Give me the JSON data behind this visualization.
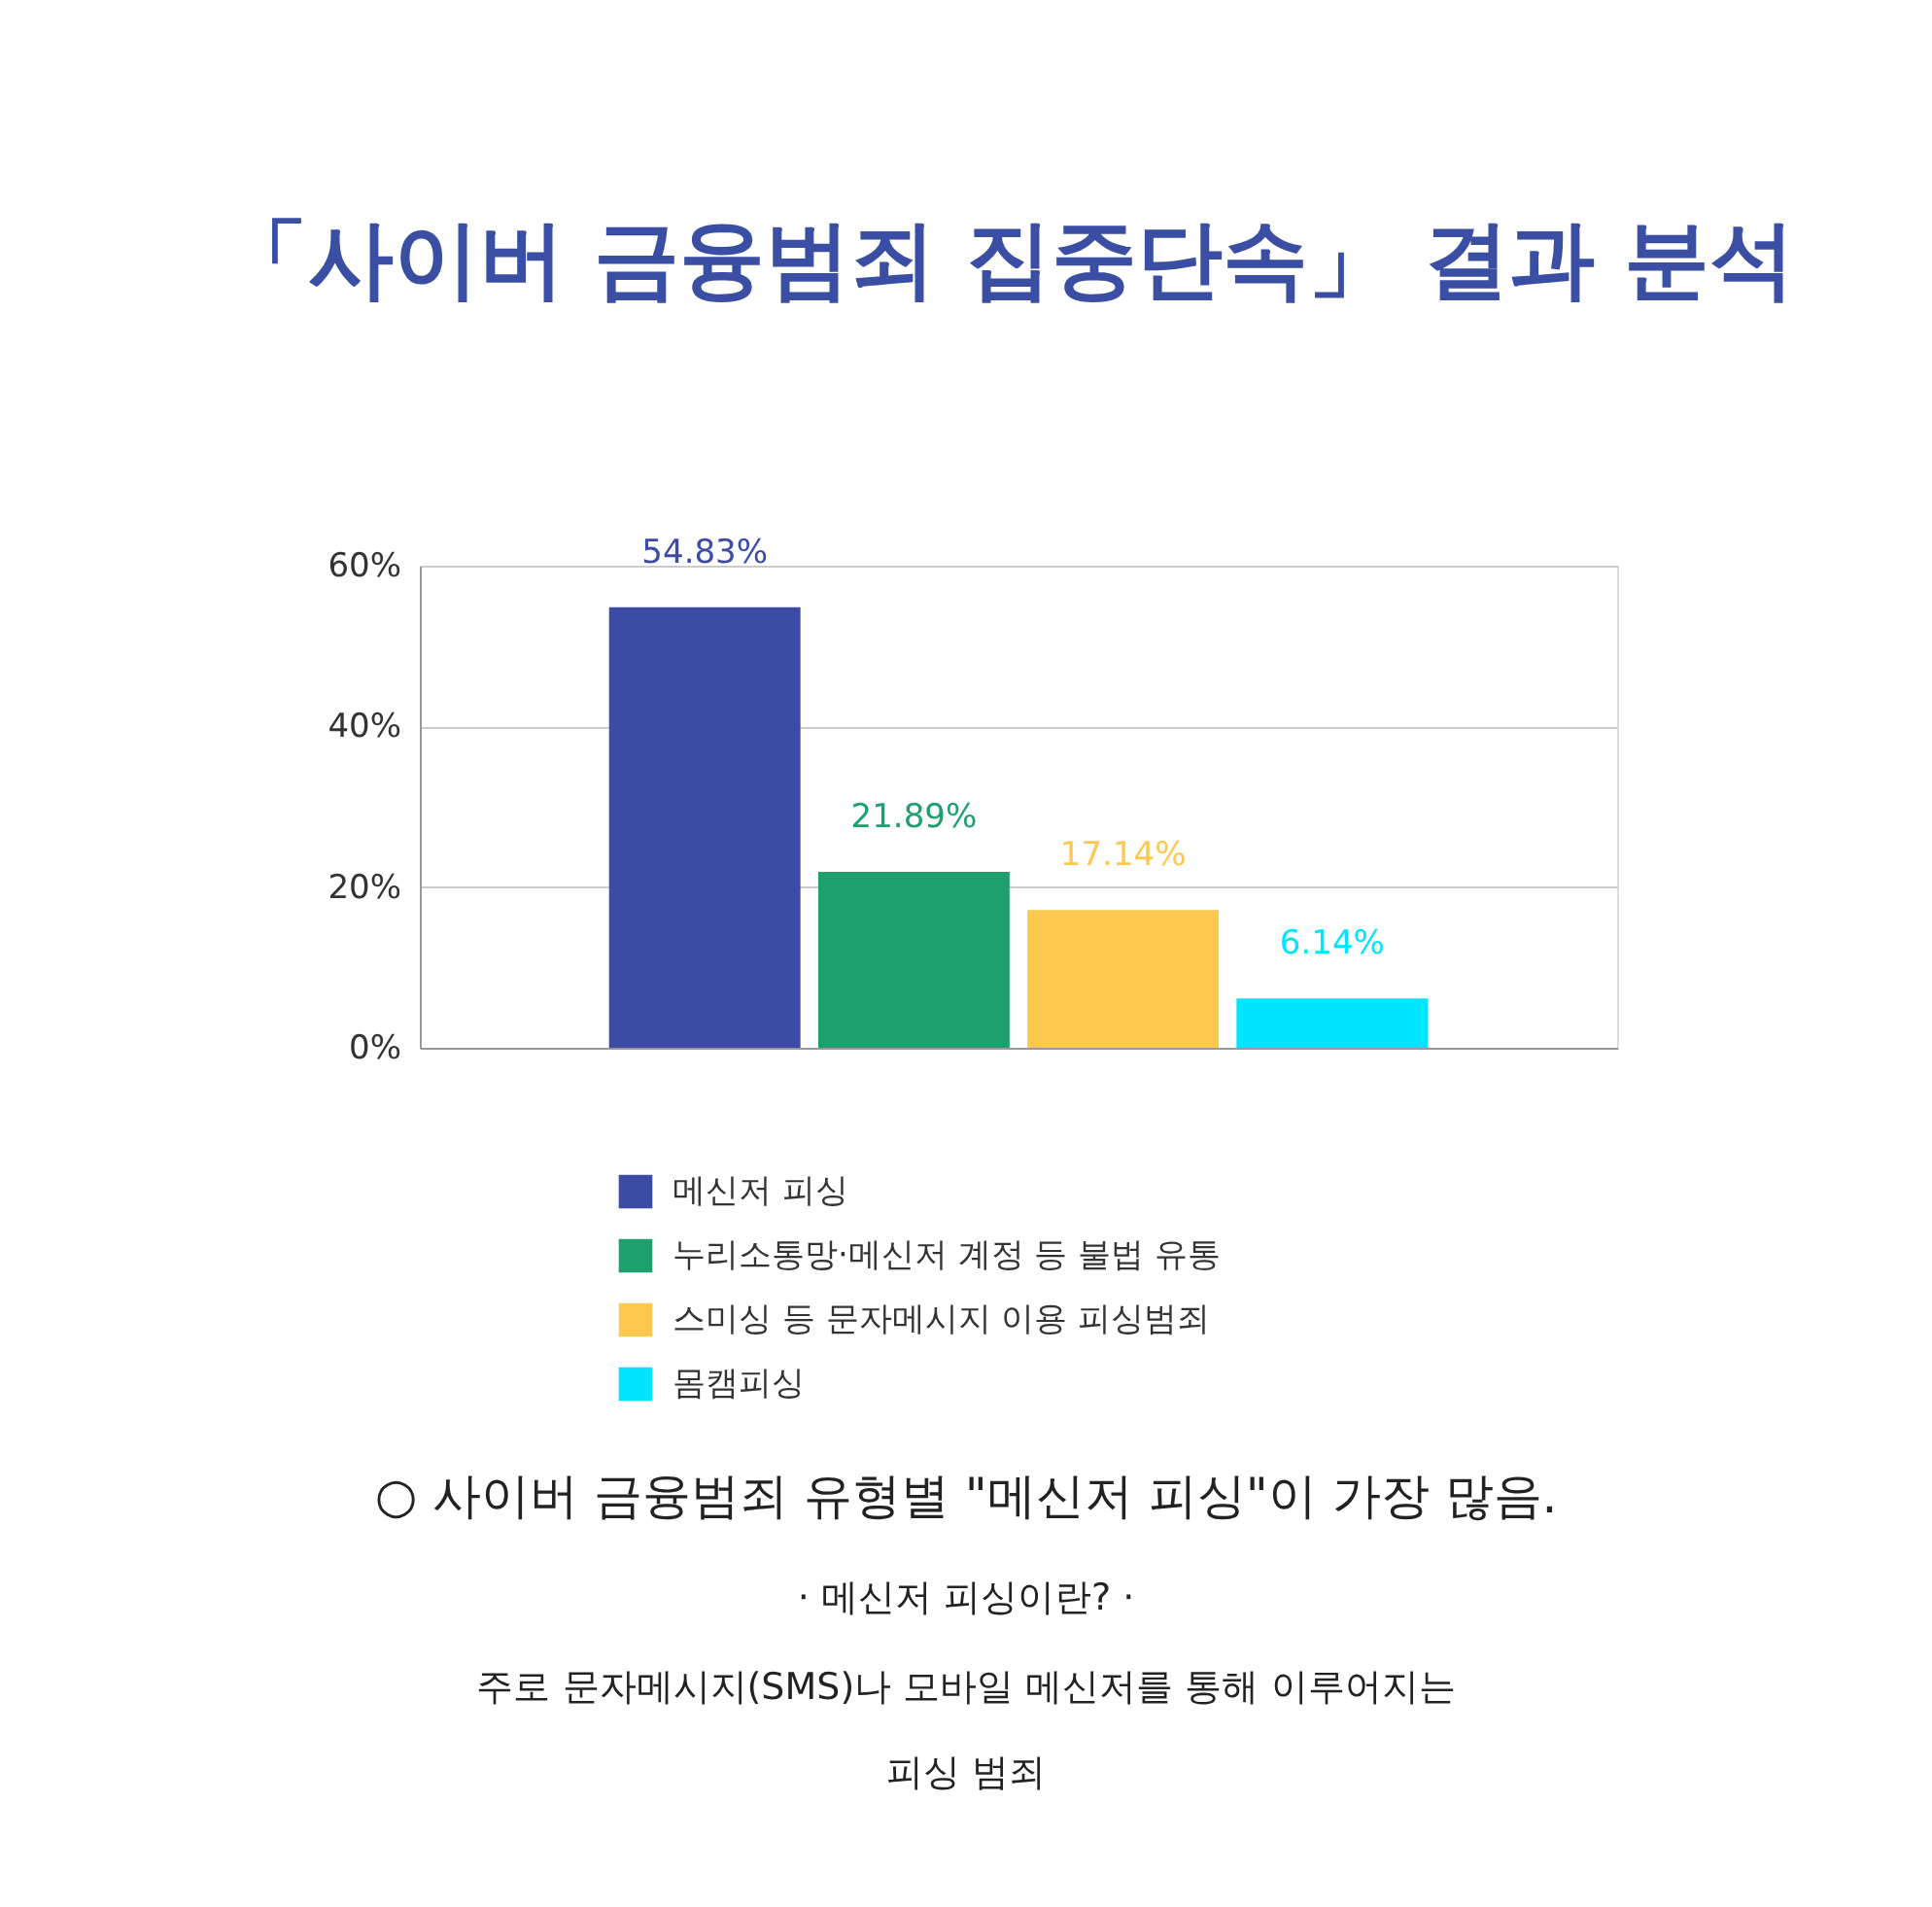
{
  "chart_data": {
    "type": "bar",
    "title": "「사이버 금융범죄 집중단속」 결과 분석",
    "categories": [
      null
    ],
    "series": [
      {
        "name": "메신저 피싱",
        "color": "#3b4ba6",
        "values": [
          54.83
        ],
        "value_labels": [
          "54.83%"
        ]
      },
      {
        "name": "누리소통망·메신저 계정 등 불법 유통",
        "color": "#1ea06e",
        "values": [
          21.89
        ],
        "value_labels": [
          "21.89%"
        ]
      },
      {
        "name": "스미싱 등 문자메시지 이용 피싱범죄",
        "color": "#fcc94e",
        "values": [
          17.14
        ],
        "value_labels": [
          "17.14%"
        ]
      },
      {
        "name": "몸캠피싱",
        "color": "#00e5ff",
        "values": [
          6.14
        ],
        "value_labels": [
          "6.14%"
        ]
      }
    ],
    "ylim": [
      0,
      60
    ],
    "yticks": [
      {
        "value": 0,
        "label": "0%"
      },
      {
        "value": 20,
        "label": "20%"
      },
      {
        "value": 40,
        "label": "40%"
      },
      {
        "value": 60,
        "label": "60%"
      }
    ],
    "grid": "y",
    "legend": "bottom",
    "tick_labels": "y",
    "annotations": [
      "○ 사이버 금융범죄 유형별 \"메신저 피싱\"이 가장 많음.",
      "· 메신저 피싱이란? ·",
      "주로 문자메시지(SMS)나 모바일 메신저를 통해 이루어지는",
      "피싱 범죄"
    ]
  }
}
